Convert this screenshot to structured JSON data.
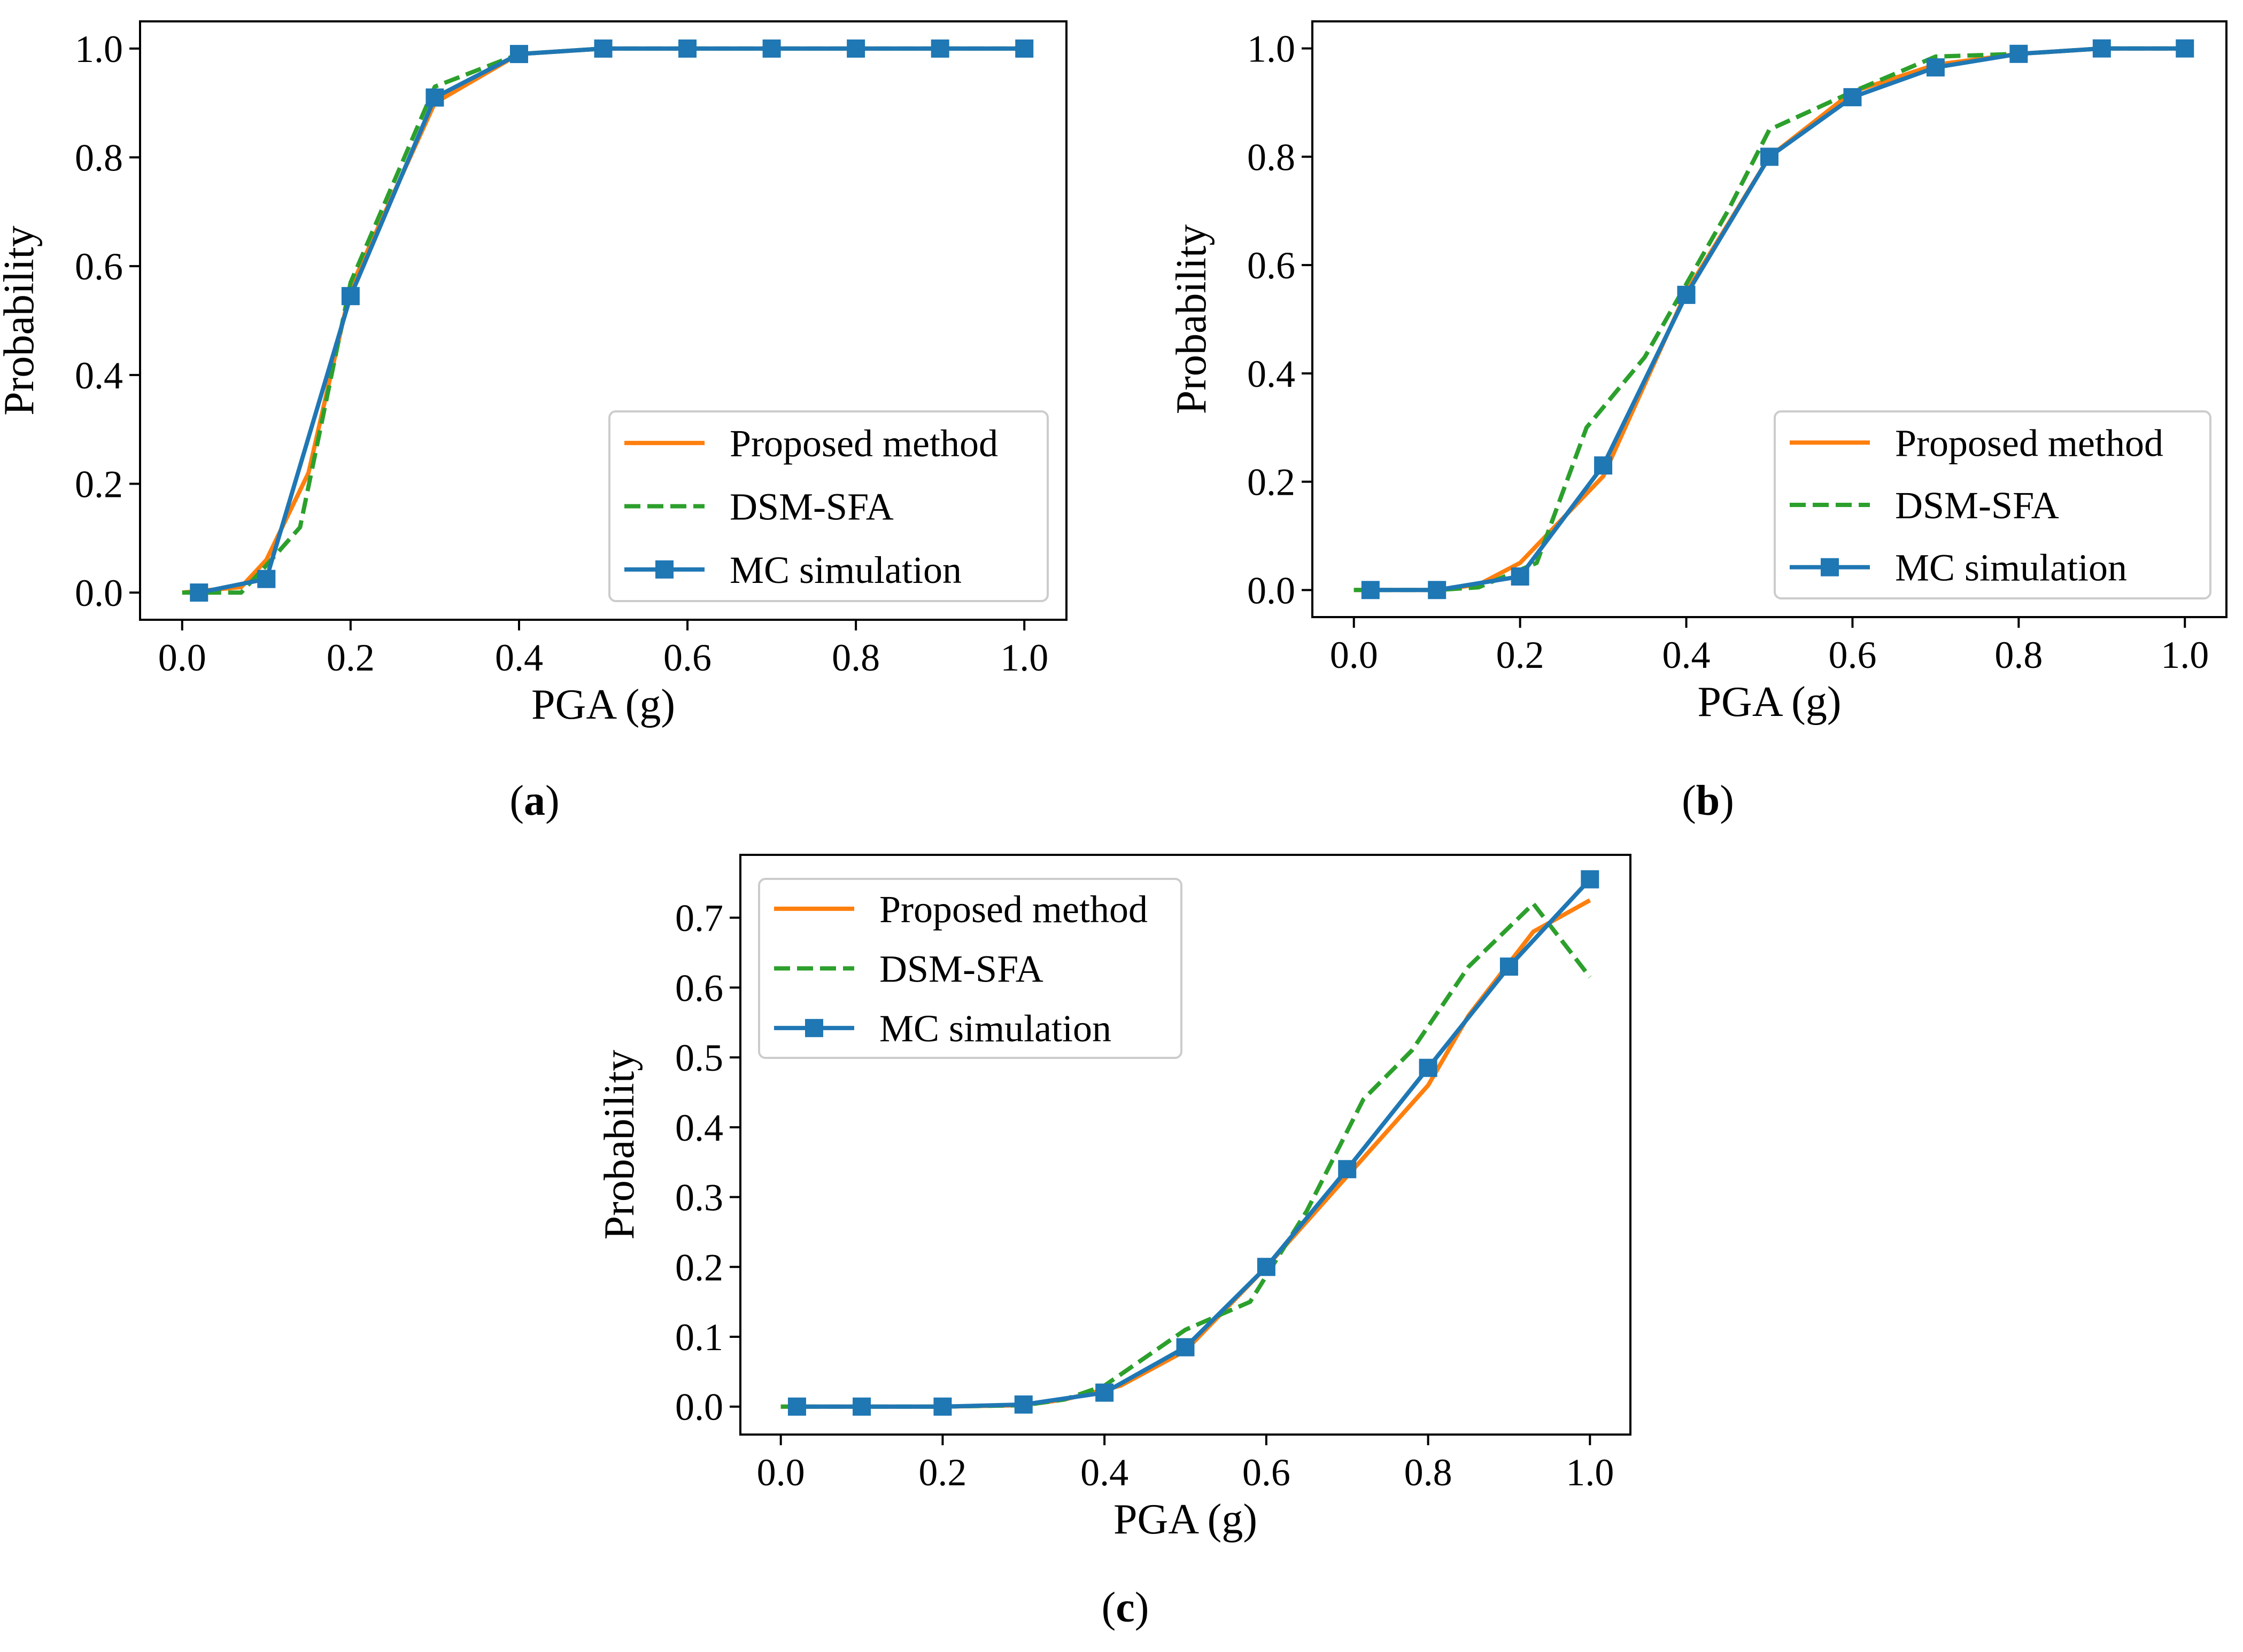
{
  "colors": {
    "proposed": "#ff7f0e",
    "dsm": "#2ca02c",
    "mc": "#1f77b4",
    "axes": "#000000",
    "legend_border": "#cccccc"
  },
  "chart_data": [
    {
      "id": "a",
      "type": "line",
      "caption_letter": "a",
      "xlabel": "PGA (g)",
      "ylabel": "Probability",
      "xlim": [
        -0.05,
        1.05
      ],
      "ylim": [
        -0.05,
        1.05
      ],
      "xticks": [
        0.0,
        0.2,
        0.4,
        0.6,
        0.8,
        1.0
      ],
      "xtick_labels": [
        "0.0",
        "0.2",
        "0.4",
        "0.6",
        "0.8",
        "1.0"
      ],
      "yticks": [
        0.0,
        0.2,
        0.4,
        0.6,
        0.8,
        1.0
      ],
      "ytick_labels": [
        "0.0",
        "0.2",
        "0.4",
        "0.6",
        "0.8",
        "1.0"
      ],
      "legend": [
        "Proposed method",
        "DSM-SFA",
        "MC simulation"
      ],
      "legend_position": "lower-right",
      "series": [
        {
          "name": "Proposed method",
          "style": "solid",
          "x": [
            0.0,
            0.07,
            0.1,
            0.15,
            0.2,
            0.3,
            0.4,
            0.5,
            0.6,
            0.7,
            0.8,
            0.9,
            1.0
          ],
          "y": [
            0.0,
            0.01,
            0.06,
            0.22,
            0.56,
            0.9,
            0.99,
            1.0,
            1.0,
            1.0,
            1.0,
            1.0,
            1.0
          ]
        },
        {
          "name": "DSM-SFA",
          "style": "dashed",
          "x": [
            0.0,
            0.07,
            0.1,
            0.14,
            0.2,
            0.3,
            0.4,
            0.5,
            0.6,
            0.7,
            0.8,
            0.9,
            1.0
          ],
          "y": [
            0.0,
            0.0,
            0.05,
            0.12,
            0.57,
            0.93,
            0.99,
            1.0,
            1.0,
            1.0,
            1.0,
            1.0,
            1.0
          ]
        },
        {
          "name": "MC simulation",
          "style": "solid-square",
          "x": [
            0.02,
            0.1,
            0.2,
            0.3,
            0.4,
            0.5,
            0.6,
            0.7,
            0.8,
            0.9,
            1.0
          ],
          "y": [
            0.0,
            0.025,
            0.545,
            0.91,
            0.99,
            1.0,
            1.0,
            1.0,
            1.0,
            1.0,
            1.0
          ]
        }
      ]
    },
    {
      "id": "b",
      "type": "line",
      "caption_letter": "b",
      "xlabel": "PGA (g)",
      "ylabel": "Probability",
      "xlim": [
        -0.05,
        1.05
      ],
      "ylim": [
        -0.05,
        1.05
      ],
      "xticks": [
        0.0,
        0.2,
        0.4,
        0.6,
        0.8,
        1.0
      ],
      "xtick_labels": [
        "0.0",
        "0.2",
        "0.4",
        "0.6",
        "0.8",
        "1.0"
      ],
      "yticks": [
        0.0,
        0.2,
        0.4,
        0.6,
        0.8,
        1.0
      ],
      "ytick_labels": [
        "0.0",
        "0.2",
        "0.4",
        "0.6",
        "0.8",
        "1.0"
      ],
      "legend": [
        "Proposed method",
        "DSM-SFA",
        "MC simulation"
      ],
      "legend_position": "lower-right",
      "series": [
        {
          "name": "Proposed method",
          "style": "solid",
          "x": [
            0.0,
            0.1,
            0.15,
            0.2,
            0.3,
            0.4,
            0.5,
            0.6,
            0.7,
            0.8,
            0.9,
            1.0
          ],
          "y": [
            0.0,
            0.0,
            0.01,
            0.05,
            0.21,
            0.55,
            0.8,
            0.92,
            0.97,
            0.99,
            1.0,
            1.0
          ]
        },
        {
          "name": "DSM-SFA",
          "style": "dashed",
          "x": [
            0.0,
            0.1,
            0.15,
            0.22,
            0.28,
            0.35,
            0.45,
            0.5,
            0.6,
            0.7,
            0.8,
            0.9,
            1.0
          ],
          "y": [
            0.0,
            0.0,
            0.005,
            0.05,
            0.3,
            0.43,
            0.7,
            0.85,
            0.92,
            0.985,
            0.99,
            1.0,
            1.0
          ]
        },
        {
          "name": "MC simulation",
          "style": "solid-square",
          "x": [
            0.02,
            0.1,
            0.2,
            0.3,
            0.4,
            0.5,
            0.6,
            0.7,
            0.8,
            0.9,
            1.0
          ],
          "y": [
            0.0,
            0.0,
            0.025,
            0.23,
            0.545,
            0.8,
            0.91,
            0.965,
            0.99,
            1.0,
            1.0
          ]
        }
      ]
    },
    {
      "id": "c",
      "type": "line",
      "caption_letter": "c",
      "xlabel": "PGA (g)",
      "ylabel": "Probability",
      "xlim": [
        -0.05,
        1.05
      ],
      "ylim": [
        -0.04,
        0.79
      ],
      "xticks": [
        0.0,
        0.2,
        0.4,
        0.6,
        0.8,
        1.0
      ],
      "xtick_labels": [
        "0.0",
        "0.2",
        "0.4",
        "0.6",
        "0.8",
        "1.0"
      ],
      "yticks": [
        0.0,
        0.1,
        0.2,
        0.3,
        0.4,
        0.5,
        0.6,
        0.7
      ],
      "ytick_labels": [
        "0.0",
        "0.1",
        "0.2",
        "0.3",
        "0.4",
        "0.5",
        "0.6",
        "0.7"
      ],
      "legend": [
        "Proposed method",
        "DSM-SFA",
        "MC simulation"
      ],
      "legend_position": "upper-left",
      "series": [
        {
          "name": "Proposed method",
          "style": "solid",
          "x": [
            0.0,
            0.1,
            0.2,
            0.3,
            0.35,
            0.42,
            0.5,
            0.6,
            0.7,
            0.8,
            0.85,
            0.93,
            1.0
          ],
          "y": [
            0.0,
            0.0,
            0.0,
            0.002,
            0.01,
            0.03,
            0.08,
            0.2,
            0.33,
            0.46,
            0.56,
            0.68,
            0.725
          ]
        },
        {
          "name": "DSM-SFA",
          "style": "dashed",
          "x": [
            0.0,
            0.1,
            0.2,
            0.3,
            0.35,
            0.4,
            0.5,
            0.58,
            0.65,
            0.72,
            0.78,
            0.85,
            0.93,
            1.0
          ],
          "y": [
            0.0,
            0.0,
            0.0,
            0.002,
            0.01,
            0.03,
            0.11,
            0.15,
            0.28,
            0.44,
            0.51,
            0.63,
            0.72,
            0.615
          ]
        },
        {
          "name": "MC simulation",
          "style": "solid-square",
          "x": [
            0.02,
            0.1,
            0.2,
            0.3,
            0.4,
            0.5,
            0.6,
            0.7,
            0.8,
            0.9,
            1.0
          ],
          "y": [
            0.0,
            0.0,
            0.0,
            0.003,
            0.02,
            0.085,
            0.2,
            0.34,
            0.485,
            0.63,
            0.755
          ]
        }
      ]
    }
  ]
}
